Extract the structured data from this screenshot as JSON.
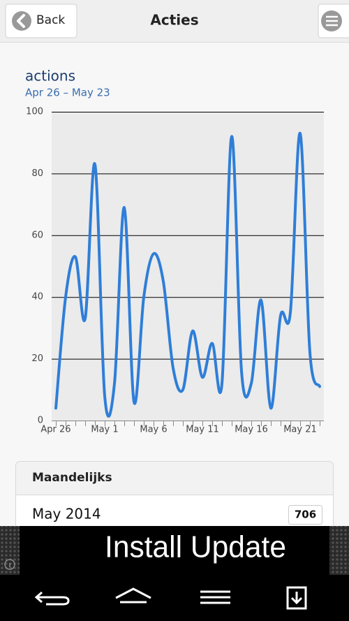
{
  "header": {
    "back": "Back",
    "title": "Acties"
  },
  "chart_data": {
    "type": "line",
    "title": "actions",
    "subtitle": "Apr 26 – May 23",
    "categories": [
      "Apr 26",
      null,
      null,
      null,
      null,
      "May 1",
      null,
      null,
      null,
      null,
      "May 6",
      null,
      null,
      null,
      null,
      "May 11",
      null,
      null,
      null,
      null,
      "May 16",
      null,
      null,
      null,
      null,
      "May 21",
      null,
      null
    ],
    "values": [
      4,
      40,
      53,
      33,
      83,
      8,
      12,
      69,
      6,
      40,
      54,
      45,
      17,
      10,
      29,
      14,
      25,
      12,
      92,
      16,
      12,
      39,
      4,
      34,
      35,
      93,
      22,
      11
    ],
    "color": "#2f7ed8",
    "ylim": [
      0,
      100
    ],
    "yticks": [
      0,
      20,
      40,
      60,
      80,
      100
    ],
    "grid": true
  },
  "summary": {
    "title": "Maandelijks",
    "rows": [
      {
        "label": "May 2014",
        "value": 706
      }
    ]
  },
  "ad": {
    "text": "Install Update"
  }
}
